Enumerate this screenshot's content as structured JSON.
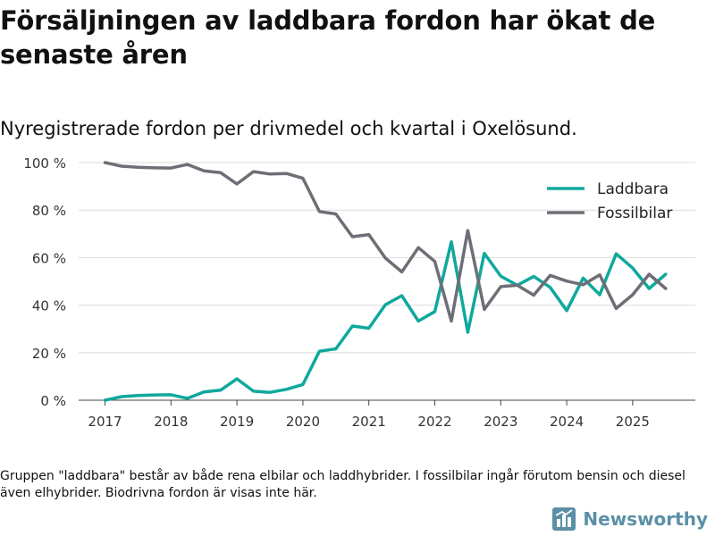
{
  "title": "Försäljningen av laddbara fordon har ökat de senaste åren",
  "subtitle": "Nyregistrerade fordon per drivmedel och kvartal i Oxelösund.",
  "footnote": "Gruppen \"laddbara\" består av både rena elbilar och laddhybrider. I fossilbilar ingår förutom bensin och diesel även elhybrider. Biodrivna fordon är visas inte här.",
  "brand": {
    "name": "Newsworthy",
    "icon": "bar-chart-logo-icon"
  },
  "colors": {
    "laddbara": "#0fa89d",
    "fossilbilar": "#6f6e76",
    "grid": "#dddddd",
    "brand": "#5b8fa6"
  },
  "chart_data": {
    "type": "line",
    "title": "Försäljningen av laddbara fordon har ökat de senaste åren",
    "xlabel": "",
    "ylabel": "",
    "x_ticks": [
      "2017",
      "2018",
      "2019",
      "2020",
      "2021",
      "2022",
      "2023",
      "2024",
      "2025"
    ],
    "y_ticks": [
      "0 %",
      "20 %",
      "40 %",
      "60 %",
      "80 %",
      "100 %"
    ],
    "ylim": [
      0,
      100
    ],
    "xlim": [
      2016.6,
      2025.95
    ],
    "grid": true,
    "legend": "top-right",
    "x": [
      2017.0,
      2017.25,
      2017.5,
      2017.75,
      2018.0,
      2018.25,
      2018.5,
      2018.75,
      2019.0,
      2019.25,
      2019.5,
      2019.75,
      2020.0,
      2020.25,
      2020.5,
      2020.75,
      2021.0,
      2021.25,
      2021.5,
      2021.75,
      2022.0,
      2022.25,
      2022.5,
      2022.75,
      2023.0,
      2023.25,
      2023.5,
      2023.75,
      2024.0,
      2024.25,
      2024.5,
      2024.75,
      2025.0,
      2025.25,
      2025.5
    ],
    "series": [
      {
        "name": "Laddbara",
        "color": "#0fa89d",
        "values": [
          0,
          1.5,
          2,
          2.2,
          2.3,
          0.8,
          3.5,
          4.2,
          9,
          3.8,
          3.3,
          4.6,
          6.6,
          20.6,
          21.6,
          31.2,
          30.3,
          40.2,
          44,
          33.3,
          37.3,
          66.7,
          28.6,
          61.8,
          52.2,
          48.4,
          52.1,
          47.5,
          37.7,
          51.4,
          44.4,
          61.6,
          55.6,
          47,
          53
        ]
      },
      {
        "name": "Fossilbilar",
        "color": "#6f6e76",
        "values": [
          100,
          98.5,
          98,
          97.8,
          97.7,
          99.2,
          96.5,
          95.8,
          91,
          96.2,
          95.2,
          95.4,
          93.4,
          79.4,
          78.4,
          68.8,
          69.7,
          59.8,
          54,
          64.2,
          58.4,
          33.3,
          71.4,
          38.2,
          47.8,
          48.4,
          44.2,
          52.5,
          50.1,
          48.6,
          52.8,
          38.6,
          44.4,
          53,
          47
        ]
      }
    ]
  }
}
